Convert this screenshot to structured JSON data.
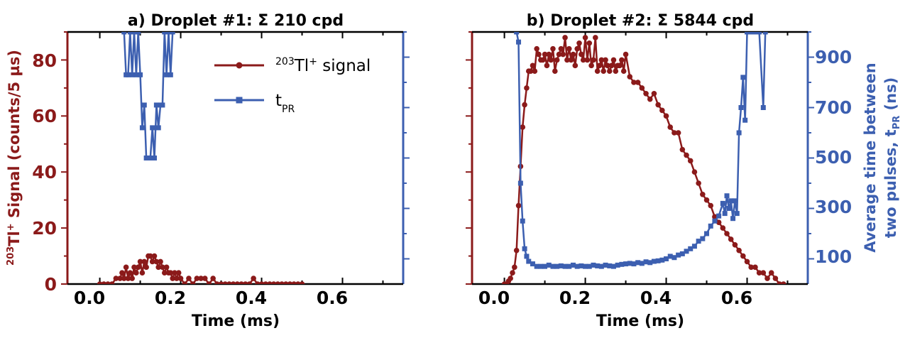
{
  "colors": {
    "signal": "#8b1a1a",
    "tpr": "#3c5fb0",
    "axis": "#000000"
  },
  "chart_data": [
    {
      "type": "line",
      "title": "a) Droplet #1: Σ 210 cpd",
      "xlabel": "Time (ms)",
      "ylabel": "203Tl+ Signal (counts/5 µs)",
      "ylabel_parts": {
        "sup1": "203",
        "mid": "Tl",
        "sup2": "+",
        "rest": " Signal (counts/5 µs)"
      },
      "xlim": [
        -0.08,
        0.75
      ],
      "ylim_left": [
        0,
        90
      ],
      "ylim_right": [
        0,
        1000
      ],
      "xticks": [
        "0.0",
        "0.2",
        "0.4",
        "0.6"
      ],
      "yticks_left": [
        "0",
        "20",
        "40",
        "60",
        "80"
      ],
      "legend": {
        "signal_parts": {
          "sup1": "203",
          "mid": "Tl",
          "sup2": "+",
          "rest": " signal"
        },
        "tpr_parts": {
          "base": "t",
          "sub": "PR"
        }
      },
      "series": [
        {
          "name": "203Tl+ signal",
          "axis": "left",
          "x": [
            0.0,
            0.01,
            0.02,
            0.03,
            0.04,
            0.05,
            0.055,
            0.06,
            0.065,
            0.07,
            0.075,
            0.08,
            0.085,
            0.09,
            0.095,
            0.1,
            0.105,
            0.11,
            0.115,
            0.12,
            0.125,
            0.13,
            0.135,
            0.14,
            0.145,
            0.15,
            0.155,
            0.16,
            0.165,
            0.17,
            0.175,
            0.18,
            0.185,
            0.19,
            0.195,
            0.2,
            0.21,
            0.22,
            0.23,
            0.24,
            0.25,
            0.26,
            0.27,
            0.28,
            0.29,
            0.3,
            0.31,
            0.32,
            0.33,
            0.34,
            0.35,
            0.36,
            0.37,
            0.38,
            0.39,
            0.4,
            0.41,
            0.42,
            0.43,
            0.44,
            0.45,
            0.46,
            0.47,
            0.48,
            0.49,
            0.5
          ],
          "y": [
            0,
            0,
            0,
            0,
            2,
            2,
            4,
            2,
            6,
            2,
            4,
            2,
            6,
            4,
            6,
            8,
            4,
            8,
            6,
            10,
            10,
            8,
            10,
            8,
            6,
            8,
            6,
            4,
            6,
            4,
            4,
            2,
            4,
            2,
            4,
            2,
            0,
            2,
            0,
            2,
            2,
            2,
            0,
            2,
            0,
            0,
            0,
            0,
            0,
            0,
            0,
            0,
            0,
            2,
            0,
            0,
            0,
            0,
            0,
            0,
            0,
            0,
            0,
            0,
            0,
            0
          ]
        },
        {
          "name": "tPR",
          "axis": "right",
          "x": [
            0.055,
            0.06,
            0.065,
            0.07,
            0.075,
            0.08,
            0.085,
            0.09,
            0.095,
            0.1,
            0.105,
            0.11,
            0.115,
            0.12,
            0.125,
            0.13,
            0.135,
            0.14,
            0.145,
            0.15,
            0.155,
            0.16,
            0.165,
            0.17,
            0.175,
            0.18
          ],
          "y": [
            1100,
            1000,
            830,
            830,
            1000,
            830,
            1000,
            830,
            1000,
            830,
            620,
            710,
            500,
            500,
            500,
            620,
            500,
            710,
            620,
            710,
            710,
            1000,
            830,
            1000,
            830,
            1000
          ]
        }
      ]
    },
    {
      "type": "line",
      "title": "b) Droplet #2: Σ 5844 cpd",
      "xlabel": "Time (ms)",
      "ylabel": "Average time between two pulses, tPR (ns)",
      "ylabel_parts": {
        "line1": "Average time between",
        "line2": "two pulses, t",
        "sub": "PR",
        "tail": " (ns)"
      },
      "xlim": [
        -0.08,
        0.75
      ],
      "ylim_left": [
        0,
        90
      ],
      "ylim_right": [
        0,
        1000
      ],
      "xticks": [
        "0.0",
        "0.2",
        "0.4",
        "0.6"
      ],
      "yticks_right": [
        "100",
        "300",
        "500",
        "700",
        "900"
      ],
      "series": [
        {
          "name": "203Tl+ signal",
          "axis": "left",
          "x": [
            0.0,
            0.005,
            0.01,
            0.015,
            0.02,
            0.025,
            0.03,
            0.035,
            0.04,
            0.045,
            0.05,
            0.055,
            0.06,
            0.065,
            0.07,
            0.075,
            0.08,
            0.085,
            0.09,
            0.095,
            0.1,
            0.105,
            0.11,
            0.115,
            0.12,
            0.125,
            0.13,
            0.135,
            0.14,
            0.145,
            0.15,
            0.155,
            0.16,
            0.165,
            0.17,
            0.175,
            0.18,
            0.185,
            0.19,
            0.195,
            0.2,
            0.205,
            0.21,
            0.215,
            0.22,
            0.225,
            0.23,
            0.235,
            0.24,
            0.245,
            0.25,
            0.255,
            0.26,
            0.265,
            0.27,
            0.275,
            0.28,
            0.285,
            0.29,
            0.295,
            0.3,
            0.31,
            0.32,
            0.33,
            0.34,
            0.35,
            0.36,
            0.37,
            0.38,
            0.39,
            0.4,
            0.41,
            0.42,
            0.43,
            0.44,
            0.45,
            0.46,
            0.47,
            0.48,
            0.49,
            0.5,
            0.51,
            0.52,
            0.53,
            0.54,
            0.55,
            0.56,
            0.57,
            0.58,
            0.59,
            0.6,
            0.61,
            0.62,
            0.63,
            0.64,
            0.65,
            0.66,
            0.67,
            0.68,
            0.69
          ],
          "y": [
            0,
            0,
            1,
            2,
            4,
            6,
            12,
            28,
            42,
            56,
            64,
            70,
            76,
            76,
            78,
            76,
            84,
            82,
            80,
            80,
            82,
            78,
            82,
            80,
            84,
            76,
            80,
            82,
            84,
            82,
            88,
            80,
            84,
            80,
            82,
            78,
            84,
            86,
            82,
            80,
            88,
            80,
            86,
            78,
            80,
            88,
            76,
            78,
            80,
            76,
            80,
            78,
            76,
            78,
            80,
            76,
            78,
            78,
            80,
            76,
            82,
            74,
            72,
            72,
            70,
            68,
            66,
            68,
            64,
            62,
            60,
            56,
            54,
            54,
            48,
            46,
            44,
            40,
            36,
            32,
            30,
            28,
            24,
            22,
            20,
            18,
            16,
            14,
            12,
            10,
            8,
            6,
            6,
            4,
            4,
            2,
            4,
            2,
            0,
            0
          ]
        },
        {
          "name": "tPR",
          "axis": "right",
          "x": [
            0.03,
            0.035,
            0.04,
            0.045,
            0.05,
            0.055,
            0.06,
            0.07,
            0.08,
            0.09,
            0.1,
            0.11,
            0.12,
            0.13,
            0.14,
            0.15,
            0.16,
            0.17,
            0.18,
            0.19,
            0.2,
            0.21,
            0.22,
            0.23,
            0.24,
            0.25,
            0.26,
            0.27,
            0.28,
            0.29,
            0.3,
            0.31,
            0.32,
            0.33,
            0.34,
            0.35,
            0.36,
            0.37,
            0.38,
            0.39,
            0.4,
            0.41,
            0.42,
            0.43,
            0.44,
            0.45,
            0.46,
            0.47,
            0.48,
            0.49,
            0.5,
            0.51,
            0.52,
            0.53,
            0.54,
            0.545,
            0.55,
            0.555,
            0.56,
            0.565,
            0.57,
            0.575,
            0.58,
            0.585,
            0.59,
            0.595,
            0.6,
            0.605,
            0.61,
            0.62,
            0.63,
            0.64,
            0.645
          ],
          "y": [
            1000,
            960,
            400,
            250,
            140,
            110,
            90,
            80,
            70,
            70,
            70,
            75,
            70,
            70,
            72,
            70,
            70,
            75,
            70,
            72,
            70,
            70,
            75,
            72,
            70,
            75,
            72,
            70,
            75,
            78,
            80,
            82,
            80,
            85,
            82,
            88,
            85,
            90,
            92,
            95,
            100,
            110,
            105,
            115,
            120,
            130,
            140,
            150,
            170,
            180,
            200,
            230,
            250,
            270,
            320,
            280,
            350,
            300,
            330,
            260,
            330,
            280,
            600,
            700,
            820,
            650,
            1000,
            1100,
            1000,
            1000,
            1000,
            700,
            1000
          ]
        }
      ]
    }
  ]
}
